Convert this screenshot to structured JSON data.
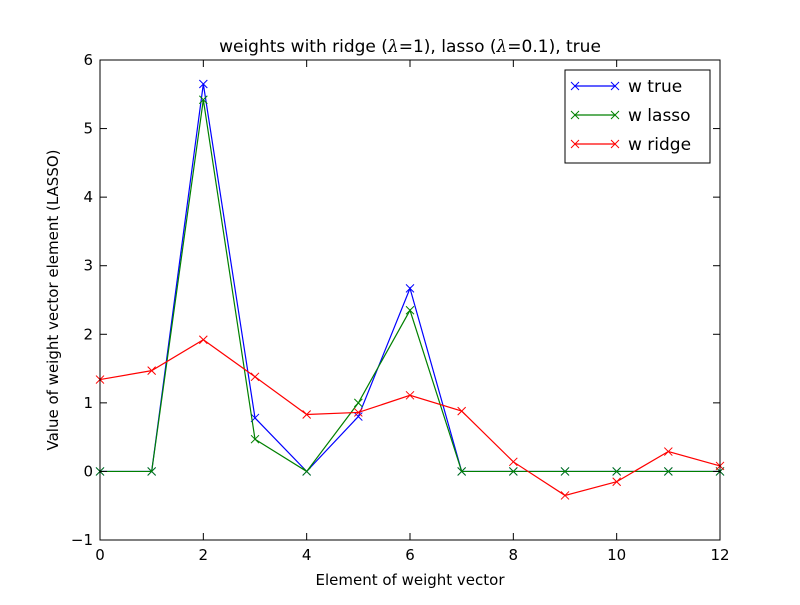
{
  "chart_data": {
    "type": "line",
    "title": "weights with ridge (λ=1), lasso (λ=0.1), true",
    "title_parts": {
      "p1": "weights with ridge (",
      "lam1": "λ",
      "eq1": "=1",
      "p2": "), lasso (",
      "lam2": "λ",
      "eq2": "=0.1",
      "p3": "), true"
    },
    "xlabel": "Element of weight vector",
    "ylabel": "Value of weight vector element (LASSO)",
    "xlim": [
      0,
      12
    ],
    "ylim": [
      -1,
      6
    ],
    "xticks": [
      0,
      2,
      4,
      6,
      8,
      10,
      12
    ],
    "yticks": [
      -1,
      0,
      1,
      2,
      3,
      4,
      5,
      6
    ],
    "xtick_labels": [
      "0",
      "2",
      "4",
      "6",
      "8",
      "10",
      "12"
    ],
    "ytick_labels": [
      "−1",
      "0",
      "1",
      "2",
      "3",
      "4",
      "5",
      "6"
    ],
    "grid": false,
    "legend_position": "top-right",
    "marker": "x",
    "x": [
      0,
      1,
      2,
      3,
      4,
      5,
      6,
      7,
      8,
      9,
      10,
      11,
      12
    ],
    "series": [
      {
        "name": "w true",
        "color": "#0000ff",
        "values": [
          0,
          0,
          5.65,
          0.78,
          0,
          0.8,
          2.67,
          0,
          0,
          0,
          0,
          0,
          0
        ]
      },
      {
        "name": "w lasso",
        "color": "#008000",
        "values": [
          0,
          0,
          5.42,
          0.47,
          0,
          1.0,
          2.35,
          0,
          0,
          0,
          0,
          0,
          0
        ]
      },
      {
        "name": "w ridge",
        "color": "#ff0000",
        "values": [
          1.34,
          1.47,
          1.92,
          1.38,
          0.83,
          0.86,
          1.11,
          0.88,
          0.14,
          -0.35,
          -0.15,
          0.29,
          0.08
        ]
      }
    ]
  }
}
